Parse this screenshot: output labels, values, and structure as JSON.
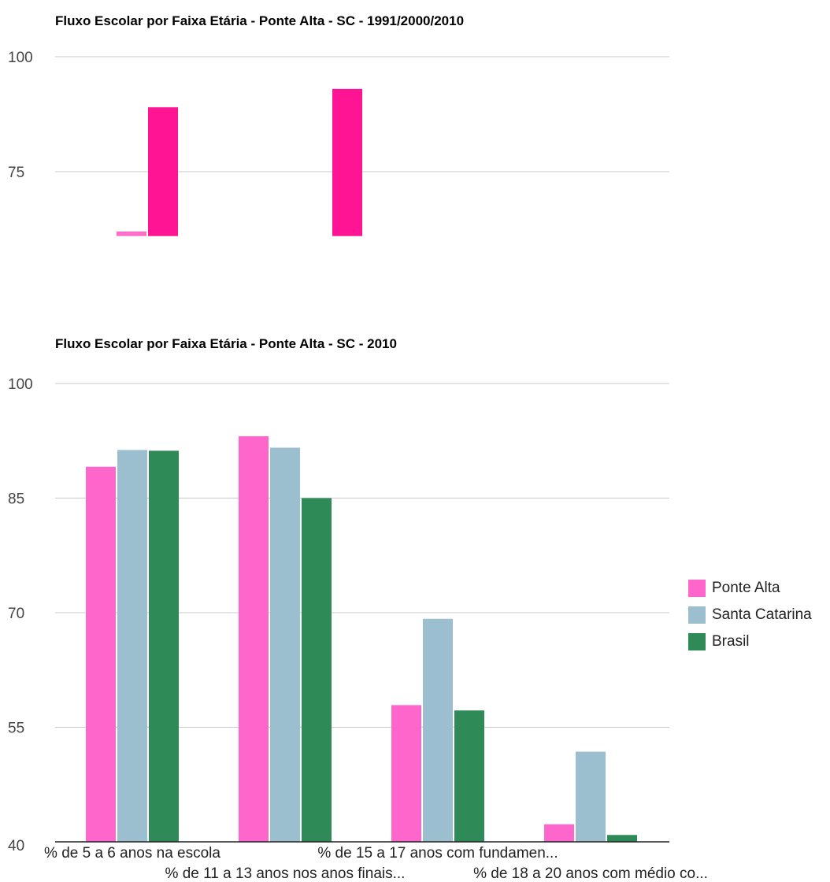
{
  "colors": {
    "ponte_alta": "#ff66cc",
    "santa_catarina": "#9cbfcf",
    "brasil": "#2e8b57",
    "top_1991": "#ff6fc8",
    "top_2000": "#ff1493",
    "grid": "#c8c8c8",
    "axis": "#222222"
  },
  "chart_data": [
    {
      "type": "bar",
      "title": "Fluxo Escolar por Faixa Etária - Ponte Alta - SC - 1991/2000/2010",
      "yticks": [
        "100",
        "75"
      ],
      "ylim": [
        61,
        100
      ],
      "grid": true,
      "categories": [
        "% de 5 a 6 anos na escola",
        "% de 11 a 13 anos nos anos finais..."
      ],
      "series": [
        {
          "values": [
            62,
            null
          ]
        },
        {
          "values": [
            89,
            93
          ]
        }
      ]
    },
    {
      "type": "bar",
      "title": "Fluxo Escolar por Faixa Etária - Ponte Alta - SC - 2010",
      "yticks": [
        "100",
        "85",
        "70",
        "55",
        "40"
      ],
      "ylim": [
        40,
        100
      ],
      "grid": true,
      "legend_position": "right",
      "categories": [
        "% de 5 a 6 anos na escola",
        "% de 11 a 13 anos nos anos finais...",
        "% de 15 a 17 anos com fundamen...",
        "% de 18 a 20 anos com médio co..."
      ],
      "series": [
        {
          "name": "Ponte Alta",
          "values": [
            89.1,
            93.1,
            57.9,
            42.3
          ]
        },
        {
          "name": "Santa Catarina",
          "values": [
            91.3,
            91.6,
            69.2,
            51.8
          ]
        },
        {
          "name": "Brasil",
          "values": [
            91.2,
            85.0,
            57.2,
            40.9
          ]
        }
      ]
    }
  ]
}
